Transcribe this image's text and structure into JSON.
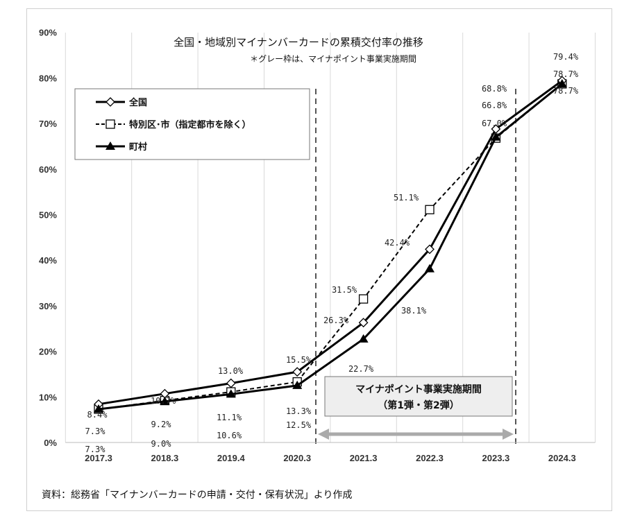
{
  "chart_data": {
    "type": "line",
    "title": "全国・地域別マイナンバーカードの累積交付率の推移",
    "subtitle": "＊グレー枠は、マイナポイント事業実施期間",
    "categories": [
      "2017.3",
      "2018.3",
      "2019.4",
      "2020.3",
      "2021.3",
      "2022.3",
      "2023.3",
      "2024.3"
    ],
    "yticks": [
      "0%",
      "10%",
      "20%",
      "30%",
      "40%",
      "50%",
      "60%",
      "70%",
      "80%",
      "90%"
    ],
    "ylim": [
      0,
      90
    ],
    "series": [
      {
        "name": "全国",
        "marker": "diamond",
        "dash": "solid",
        "values": [
          8.4,
          10.7,
          13.0,
          15.5,
          26.3,
          42.4,
          68.8,
          79.4
        ],
        "labels": [
          "8.4%",
          "10.7%",
          "13.0%",
          "15.5%",
          "26.3%",
          "42.4%",
          "68.8%",
          "79.4%"
        ]
      },
      {
        "name": "特別区･市（指定都市を除く）",
        "marker": "square",
        "dash": "dashed",
        "values": [
          7.3,
          9.2,
          11.1,
          13.3,
          31.5,
          51.1,
          66.8,
          78.7
        ],
        "labels": [
          "7.3%",
          "9.2%",
          "11.1%",
          "13.3%",
          "31.5%",
          "51.1%",
          "66.8%",
          "78.7%"
        ]
      },
      {
        "name": "町村",
        "marker": "triangle",
        "dash": "solid",
        "values": [
          7.3,
          9.0,
          10.6,
          12.5,
          22.7,
          38.1,
          67.0,
          78.7
        ],
        "labels": [
          "7.3%",
          "9.0%",
          "10.6%",
          "12.5%",
          "22.7%",
          "38.1%",
          "67.0%",
          "78.7%"
        ]
      }
    ],
    "annotation": {
      "line1": "マイナポイント事業実施期間",
      "line2": "（第1弾・第2弾）"
    },
    "legend_placement": "top-left",
    "grid": "vertical"
  },
  "source": "資料：総務省「マイナンバーカードの申請・交付・保有状況」より作成"
}
